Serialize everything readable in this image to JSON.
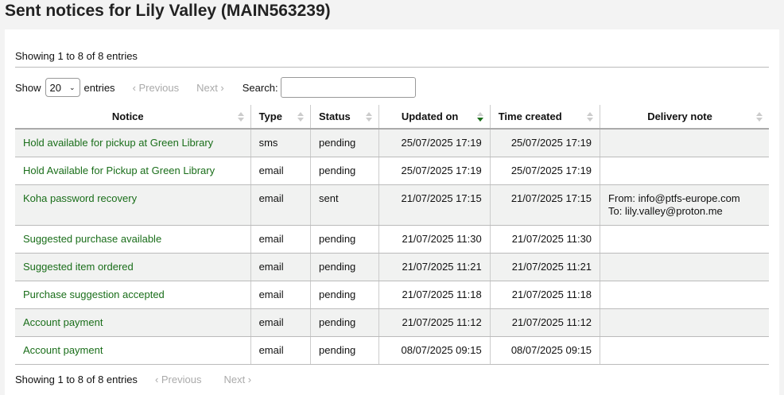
{
  "title": "Sent notices for Lily Valley (MAIN563239)",
  "info": "Showing 1 to 8 of 8 entries",
  "controls": {
    "show": "Show",
    "page_size": "20",
    "entries": "entries",
    "previous": "‹ Previous",
    "next": "Next ›",
    "search_label": "Search:",
    "search_value": ""
  },
  "columns": [
    "Notice",
    "Type",
    "Status",
    "Updated on",
    "Time created",
    "Delivery note"
  ],
  "sorted_column": "Updated on",
  "rows": [
    {
      "notice": "Hold available for pickup at Green Library",
      "type": "sms",
      "status": "pending",
      "updated": "25/07/2025 17:19",
      "created": "25/07/2025 17:19",
      "note1": "",
      "note2": ""
    },
    {
      "notice": "Hold Available for Pickup at Green Library",
      "type": "email",
      "status": "pending",
      "updated": "25/07/2025 17:19",
      "created": "25/07/2025 17:19",
      "note1": "",
      "note2": ""
    },
    {
      "notice": "Koha password recovery",
      "type": "email",
      "status": "sent",
      "updated": "21/07/2025 17:15",
      "created": "21/07/2025 17:15",
      "note1": "From: info@ptfs-europe.com",
      "note2": "To: lily.valley@proton.me"
    },
    {
      "notice": "Suggested purchase available",
      "type": "email",
      "status": "pending",
      "updated": "21/07/2025 11:30",
      "created": "21/07/2025 11:30",
      "note1": "",
      "note2": ""
    },
    {
      "notice": "Suggested item ordered",
      "type": "email",
      "status": "pending",
      "updated": "21/07/2025 11:21",
      "created": "21/07/2025 11:21",
      "note1": "",
      "note2": ""
    },
    {
      "notice": "Purchase suggestion accepted",
      "type": "email",
      "status": "pending",
      "updated": "21/07/2025 11:18",
      "created": "21/07/2025 11:18",
      "note1": "",
      "note2": ""
    },
    {
      "notice": "Account payment",
      "type": "email",
      "status": "pending",
      "updated": "21/07/2025 11:12",
      "created": "21/07/2025 11:12",
      "note1": "",
      "note2": ""
    },
    {
      "notice": "Account payment",
      "type": "email",
      "status": "pending",
      "updated": "08/07/2025 09:15",
      "created": "08/07/2025 09:15",
      "note1": "",
      "note2": ""
    }
  ],
  "colors": {
    "link": "#1a6e1a",
    "stripe": "#f1f2f1"
  }
}
